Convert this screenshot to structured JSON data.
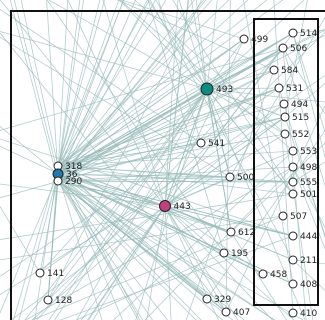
{
  "colors": {
    "edge": "#9bbcbc",
    "node_default": "#ffffff",
    "hub_teal": "#0f8a83",
    "hub_magenta": "#c2407c",
    "hub_blue": "#1f7ab0"
  },
  "nodes": [
    {
      "id": "n514",
      "label": "514",
      "kind": "default"
    },
    {
      "id": "n499",
      "label": "499",
      "kind": "default"
    },
    {
      "id": "n506",
      "label": "506",
      "kind": "default"
    },
    {
      "id": "n584",
      "label": "584",
      "kind": "default"
    },
    {
      "id": "n493",
      "label": "493",
      "kind": "hub_teal"
    },
    {
      "id": "n531",
      "label": "531",
      "kind": "default"
    },
    {
      "id": "n494",
      "label": "494",
      "kind": "default"
    },
    {
      "id": "n515",
      "label": "515",
      "kind": "default"
    },
    {
      "id": "n552",
      "label": "552",
      "kind": "default"
    },
    {
      "id": "n541",
      "label": "541",
      "kind": "default"
    },
    {
      "id": "n553",
      "label": "553",
      "kind": "default"
    },
    {
      "id": "n318",
      "label": "318",
      "kind": "default"
    },
    {
      "id": "n36",
      "label": "36",
      "kind": "hub_blue"
    },
    {
      "id": "n290",
      "label": "290",
      "kind": "default"
    },
    {
      "id": "n498",
      "label": "498",
      "kind": "default"
    },
    {
      "id": "n500",
      "label": "500",
      "kind": "default"
    },
    {
      "id": "n555",
      "label": "555",
      "kind": "default"
    },
    {
      "id": "n501",
      "label": "501",
      "kind": "default"
    },
    {
      "id": "n443",
      "label": "443",
      "kind": "hub_magenta"
    },
    {
      "id": "n507",
      "label": "507",
      "kind": "default"
    },
    {
      "id": "n612",
      "label": "612",
      "kind": "default"
    },
    {
      "id": "n444",
      "label": "444",
      "kind": "default"
    },
    {
      "id": "n195",
      "label": "195",
      "kind": "default"
    },
    {
      "id": "n211",
      "label": "211",
      "kind": "default"
    },
    {
      "id": "n141",
      "label": "141",
      "kind": "default"
    },
    {
      "id": "n458",
      "label": "458",
      "kind": "default"
    },
    {
      "id": "n408",
      "label": "408",
      "kind": "default"
    },
    {
      "id": "n128",
      "label": "128",
      "kind": "default"
    },
    {
      "id": "n329",
      "label": "329",
      "kind": "default"
    },
    {
      "id": "n407",
      "label": "407",
      "kind": "default"
    },
    {
      "id": "n410",
      "label": "410",
      "kind": "default"
    }
  ]
}
